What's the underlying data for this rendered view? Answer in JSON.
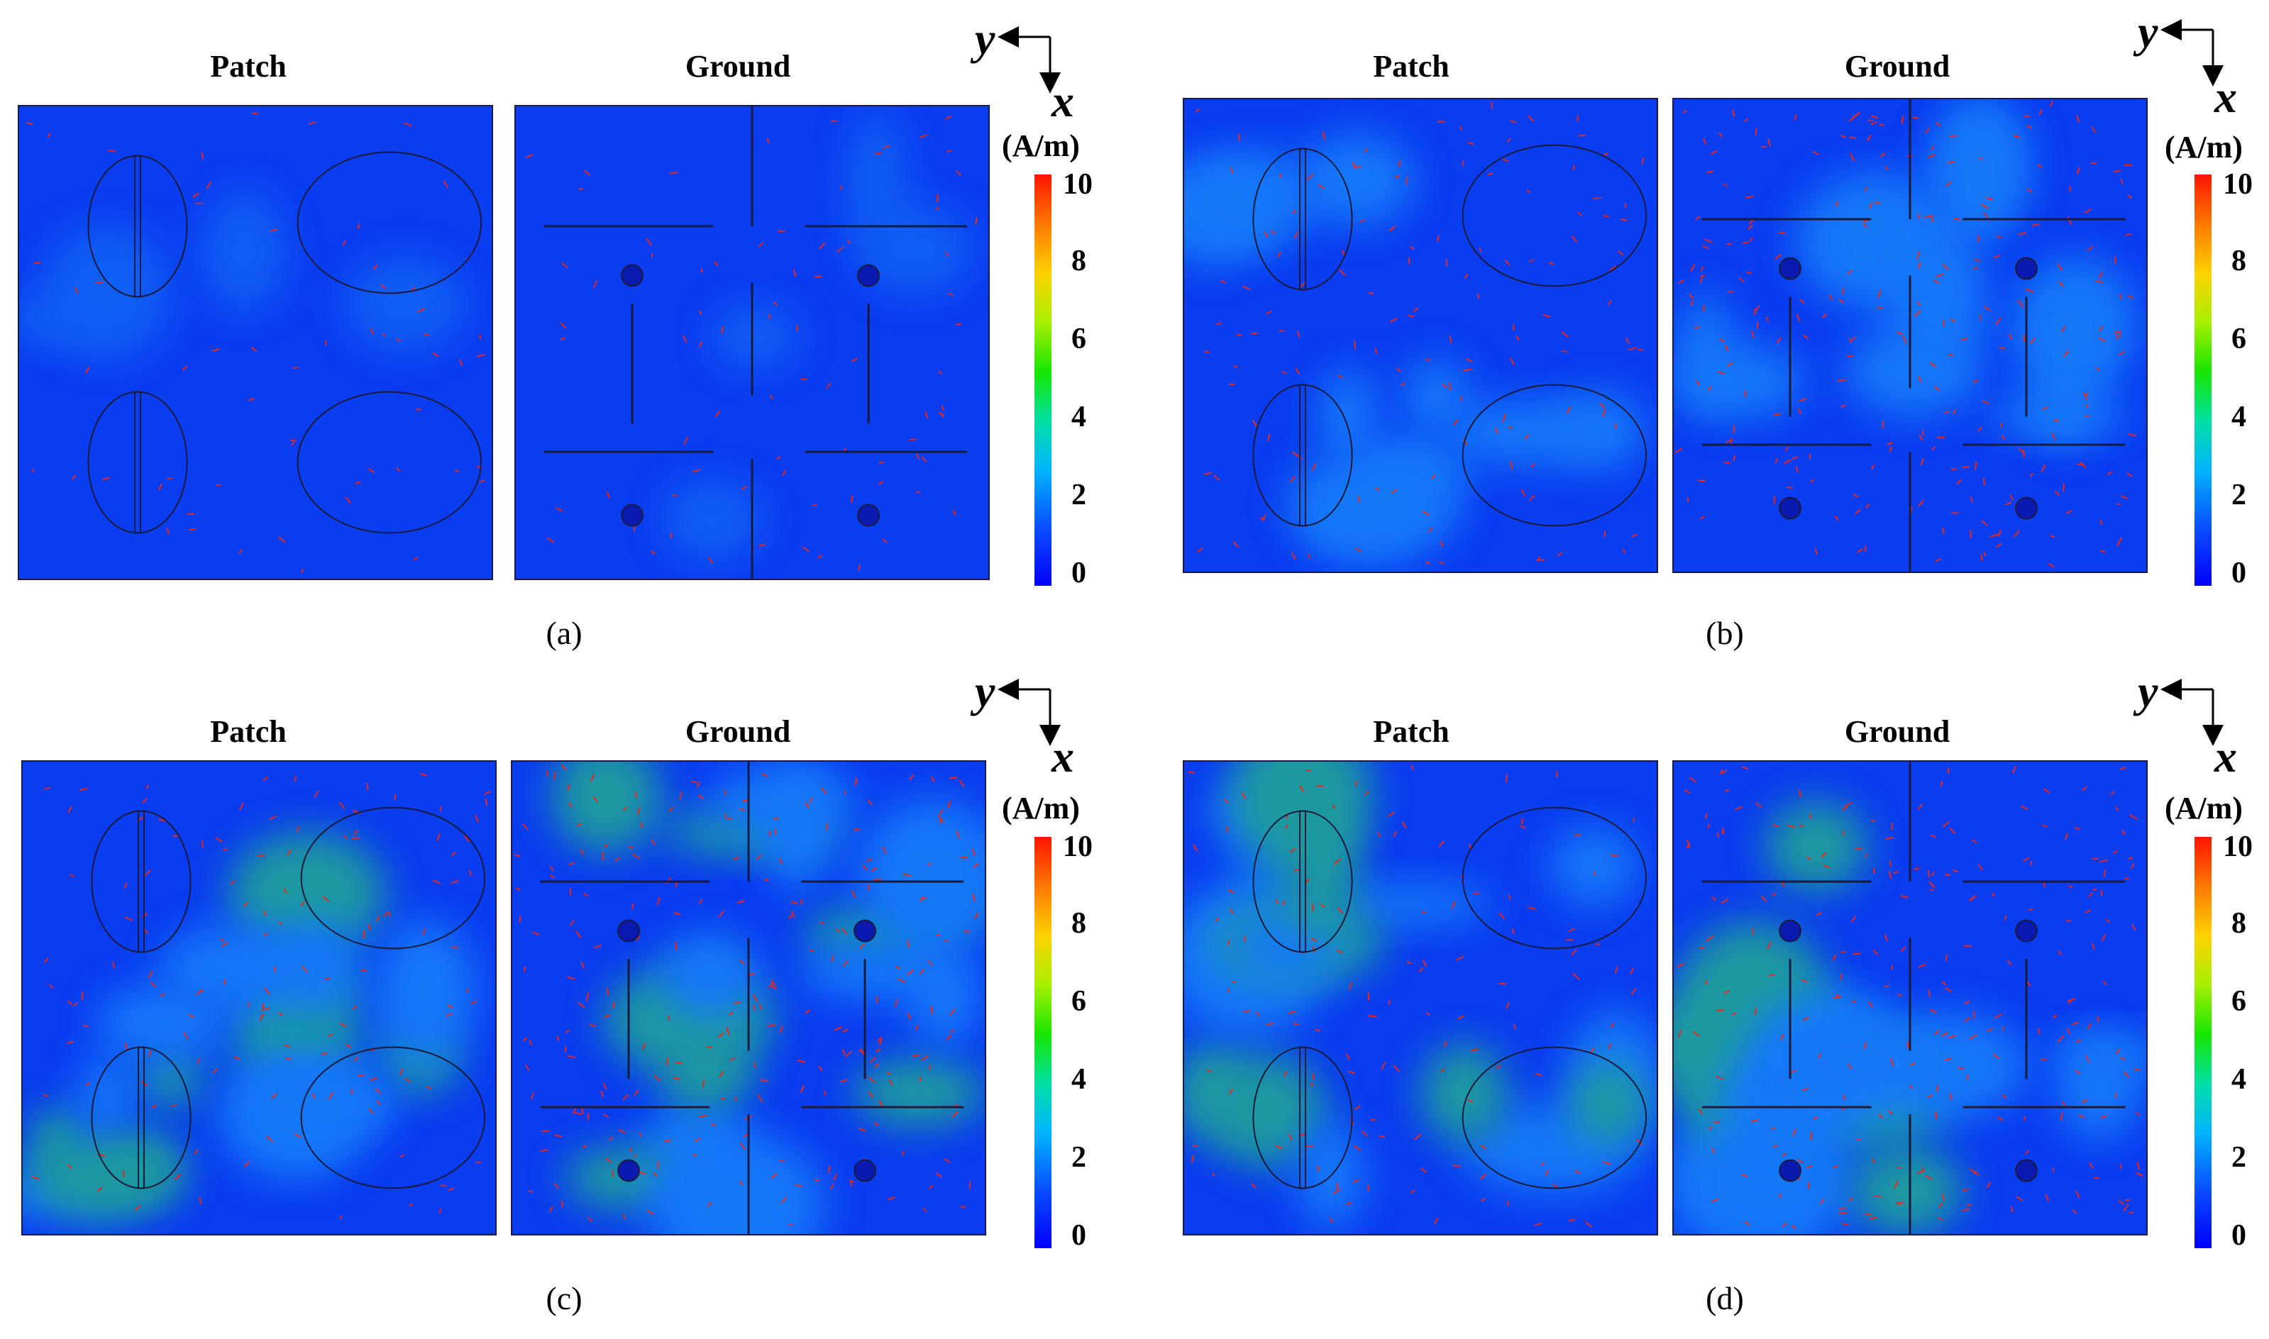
{
  "labels": {
    "patch": "Patch",
    "ground": "Ground",
    "axis_y": "y",
    "axis_x": "x",
    "unit": "(A/m)"
  },
  "colorbar": {
    "ticks": [
      "10",
      "8",
      "6",
      "4",
      "2",
      "0"
    ],
    "colors": [
      "#ff1400",
      "#ff7800",
      "#ffd200",
      "#17e600",
      "#00b4ff",
      "#0000ff"
    ]
  },
  "panels": [
    {
      "id": "a",
      "caption": "(a)",
      "level": "low"
    },
    {
      "id": "b",
      "caption": "(b)",
      "level": "medium"
    },
    {
      "id": "c",
      "caption": "(c)",
      "level": "high"
    },
    {
      "id": "d",
      "caption": "(d)",
      "level": "high"
    }
  ],
  "colors": {
    "field_base": "#0a3cf0",
    "field_mid": "#1ea0ff",
    "field_hot": "#2ad86a",
    "arrow": "#e8281e",
    "outline": "#1a1a3a"
  }
}
